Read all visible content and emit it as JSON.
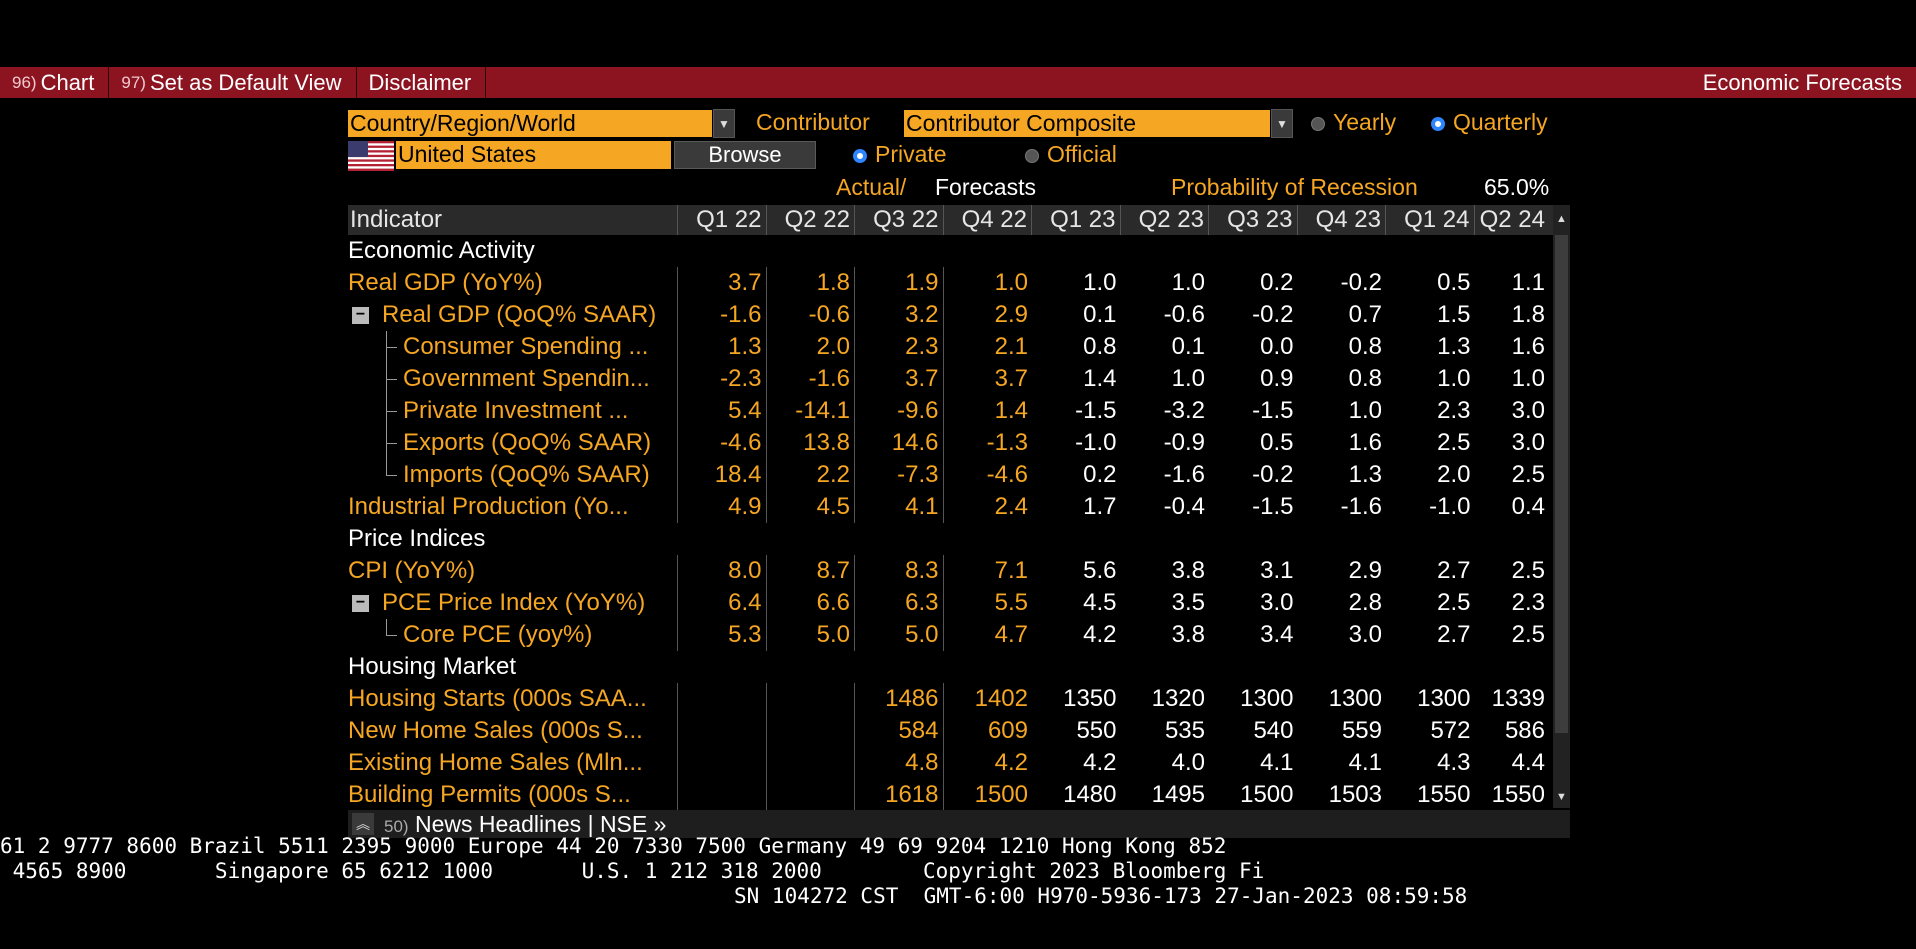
{
  "menubar": {
    "items": [
      {
        "num": "96)",
        "label": "Chart"
      },
      {
        "num": "97)",
        "label": "Set as Default View"
      },
      {
        "num": "",
        "label": "Disclaimer"
      }
    ],
    "title": "Economic Forecasts"
  },
  "controls": {
    "scope_dropdown": "Country/Region/World",
    "contributor_label": "Contributor",
    "contributor_dropdown": "Contributor Composite",
    "yearly_label": "Yearly",
    "quarterly_label": "Quarterly",
    "country_value": "United States",
    "browse_label": "Browse",
    "private_label": "Private",
    "official_label": "Official",
    "actual_label": "Actual/",
    "forecasts_label": "Forecasts",
    "recession_label": "Probability of Recession",
    "recession_value": "65.0%"
  },
  "table": {
    "indicator_header": "Indicator",
    "columns": [
      "Q1 22",
      "Q2 22",
      "Q3 22",
      "Q4 22",
      "Q1 23",
      "Q2 23",
      "Q3 23",
      "Q4 23",
      "Q1 24",
      "Q2 24"
    ],
    "rows": [
      {
        "type": "section",
        "label": "Economic Activity"
      },
      {
        "type": "data",
        "label": "Real GDP (YoY%)",
        "level": 0,
        "values": [
          "3.7",
          "1.8",
          "1.9",
          "1.0",
          "1.0",
          "1.0",
          "0.2",
          "-0.2",
          "0.5",
          "1.1"
        ]
      },
      {
        "type": "data",
        "label": "Real GDP (QoQ% SAAR)",
        "level": 1,
        "collapse": true,
        "values": [
          "-1.6",
          "-0.6",
          "3.2",
          "2.9",
          "0.1",
          "-0.6",
          "-0.2",
          "0.7",
          "1.5",
          "1.8"
        ]
      },
      {
        "type": "data",
        "label": "Consumer Spending ...",
        "level": 2,
        "tree": "mid",
        "values": [
          "1.3",
          "2.0",
          "2.3",
          "2.1",
          "0.8",
          "0.1",
          "0.0",
          "0.8",
          "1.3",
          "1.6"
        ]
      },
      {
        "type": "data",
        "label": "Government Spendin...",
        "level": 2,
        "tree": "mid",
        "values": [
          "-2.3",
          "-1.6",
          "3.7",
          "3.7",
          "1.4",
          "1.0",
          "0.9",
          "0.8",
          "1.0",
          "1.0"
        ]
      },
      {
        "type": "data",
        "label": "Private Investment ...",
        "level": 2,
        "tree": "mid",
        "values": [
          "5.4",
          "-14.1",
          "-9.6",
          "1.4",
          "-1.5",
          "-3.2",
          "-1.5",
          "1.0",
          "2.3",
          "3.0"
        ]
      },
      {
        "type": "data",
        "label": "Exports (QoQ% SAAR)",
        "level": 2,
        "tree": "mid",
        "values": [
          "-4.6",
          "13.8",
          "14.6",
          "-1.3",
          "-1.0",
          "-0.9",
          "0.5",
          "1.6",
          "2.5",
          "3.0"
        ]
      },
      {
        "type": "data",
        "label": "Imports (QoQ% SAAR)",
        "level": 2,
        "tree": "last",
        "values": [
          "18.4",
          "2.2",
          "-7.3",
          "-4.6",
          "0.2",
          "-1.6",
          "-0.2",
          "1.3",
          "2.0",
          "2.5"
        ]
      },
      {
        "type": "data",
        "label": "Industrial Production (Yo...",
        "level": 0,
        "values": [
          "4.9",
          "4.5",
          "4.1",
          "2.4",
          "1.7",
          "-0.4",
          "-1.5",
          "-1.6",
          "-1.0",
          "0.4"
        ]
      },
      {
        "type": "section",
        "label": "Price Indices"
      },
      {
        "type": "data",
        "label": "CPI (YoY%)",
        "level": 0,
        "values": [
          "8.0",
          "8.7",
          "8.3",
          "7.1",
          "5.6",
          "3.8",
          "3.1",
          "2.9",
          "2.7",
          "2.5"
        ]
      },
      {
        "type": "data",
        "label": "PCE Price Index (YoY%)",
        "level": 1,
        "collapse": true,
        "values": [
          "6.4",
          "6.6",
          "6.3",
          "5.5",
          "4.5",
          "3.5",
          "3.0",
          "2.8",
          "2.5",
          "2.3"
        ]
      },
      {
        "type": "data",
        "label": "Core PCE (yoy%)",
        "level": 2,
        "tree": "last",
        "values": [
          "5.3",
          "5.0",
          "5.0",
          "4.7",
          "4.2",
          "3.8",
          "3.4",
          "3.0",
          "2.7",
          "2.5"
        ]
      },
      {
        "type": "section",
        "label": "Housing Market"
      },
      {
        "type": "data",
        "label": "Housing Starts (000s SAA...",
        "level": 0,
        "values": [
          "",
          "",
          "1486",
          "1402",
          "1350",
          "1320",
          "1300",
          "1300",
          "1300",
          "1339"
        ]
      },
      {
        "type": "data",
        "label": "New Home Sales (000s S...",
        "level": 0,
        "values": [
          "",
          "",
          "584",
          "609",
          "550",
          "535",
          "540",
          "559",
          "572",
          "586"
        ]
      },
      {
        "type": "data",
        "label": "Existing Home Sales (Mln...",
        "level": 0,
        "values": [
          "",
          "",
          "4.8",
          "4.2",
          "4.2",
          "4.0",
          "4.1",
          "4.1",
          "4.3",
          "4.4"
        ]
      },
      {
        "type": "data",
        "label": "Building Permits (000s S...",
        "level": 0,
        "values": [
          "",
          "",
          "1618",
          "1500",
          "1480",
          "1495",
          "1500",
          "1503",
          "1550",
          "1550"
        ]
      }
    ]
  },
  "news": {
    "num": "50)",
    "label": "News Headlines",
    "sep": "|",
    "link": "NSE »"
  },
  "footer": {
    "line1": "61 2 9777 8600 Brazil 5511 2395 9000 Europe 44 20 7330 7500 Germany 49 69 9204 1210 Hong Kong 852",
    "line2": " 4565 8900       Singapore 65 6212 1000       U.S. 1 212 318 2000        Copyright 2023 Bloomberg Fi",
    "line3": "SN 104272 CST  GMT-6:00 H970-5936-173 27-Jan-2023 08:59:58"
  }
}
